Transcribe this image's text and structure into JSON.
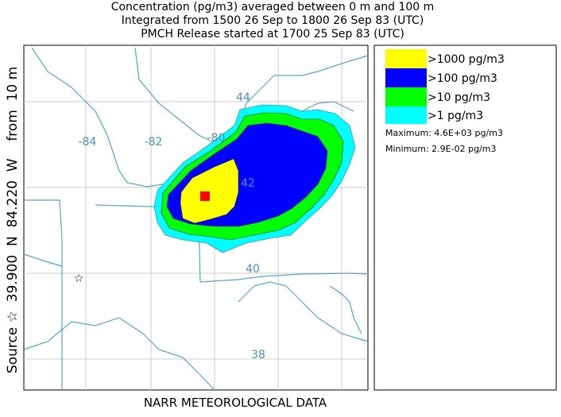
{
  "header": {
    "lines": [
      "Concentration  (pg/m3) averaged between     0 m and   100 m",
      "Integrated from 1500 26 Sep to 1800 26 Sep 83 (UTC)",
      "PMCH Release started at 1700 25 Sep 83 (UTC)"
    ]
  },
  "side_label": "Source ☆  39.900  N  84.220  W    from  10 m",
  "footer": "NARR METEOROLOGICAL DATA",
  "map": {
    "labels": [
      "-84",
      "-82",
      "-80",
      "44",
      "42",
      "40",
      "38"
    ],
    "source_marker": "☆"
  },
  "legend": {
    "entries": [
      ">1000 pg/m3",
      ">100 pg/m3",
      ">10 pg/m3",
      ">1 pg/m3"
    ],
    "maximum": "Maximum: 4.6E+03 pg/m3",
    "minimum": "Minimum: 2.9E-02 pg/m3"
  }
}
